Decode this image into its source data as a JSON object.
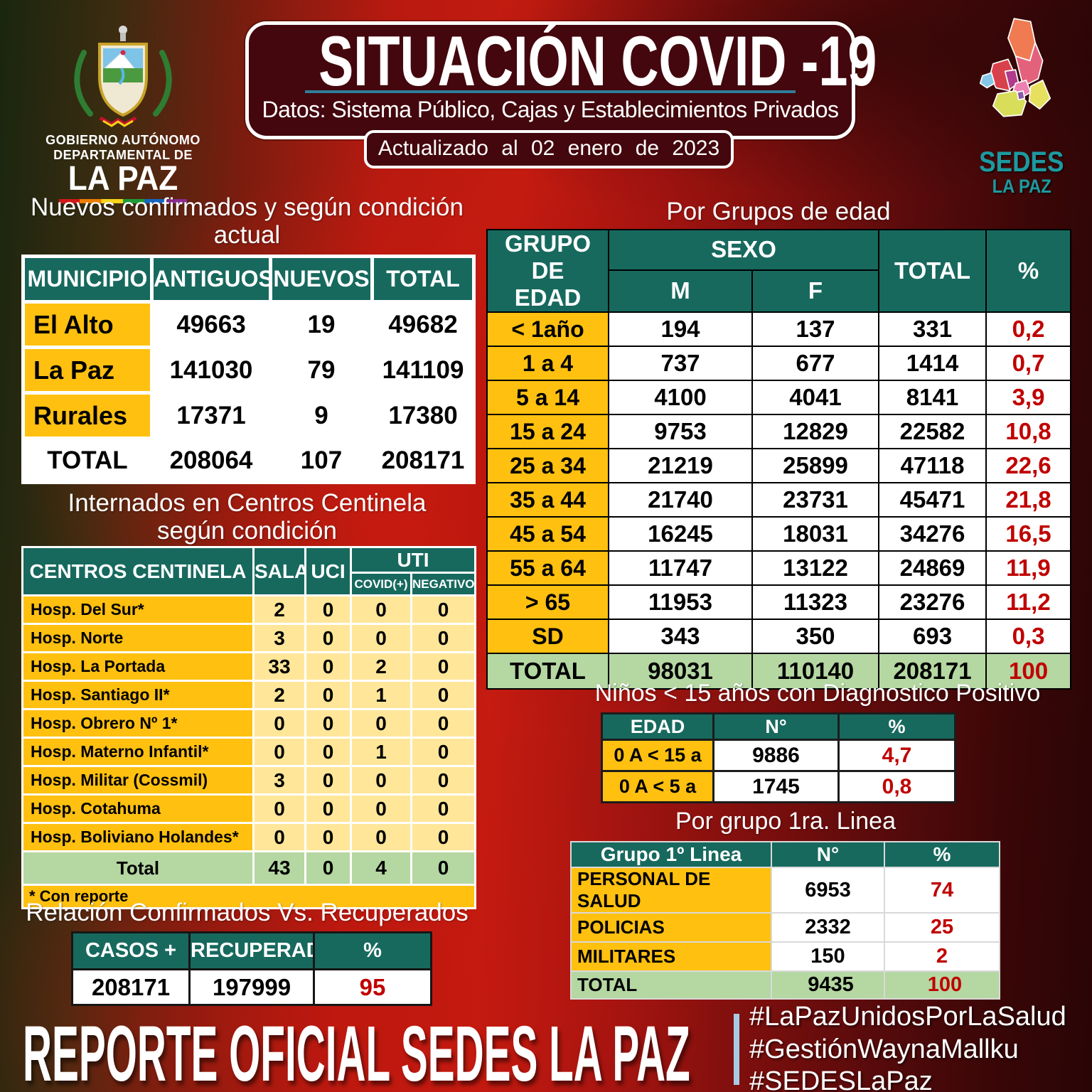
{
  "header": {
    "title": "SITUACIÓN COVID -19",
    "subtitle": "Datos: Sistema Público, Cajas y Establecimientos Privados",
    "updated": "Actualizado al 02 enero de 2023"
  },
  "logo_gobierno": {
    "line1": "GOBIERNO AUTÓNOMO",
    "line2": "DEPARTAMENTAL DE",
    "line3": "LA PAZ"
  },
  "logo_sedes": {
    "line1": "SEDES",
    "line2": "LA PAZ"
  },
  "municipios": {
    "title_line1": "Nuevos confirmados y según condición",
    "title_line2": "actual",
    "headers": [
      "MUNICIPIO",
      "ANTIGUOS",
      "NUEVOS",
      "TOTAL"
    ],
    "rows": [
      [
        "El Alto",
        "49663",
        "19",
        "49682"
      ],
      [
        "La Paz",
        "141030",
        "79",
        "141109"
      ],
      [
        "Rurales",
        "17371",
        "9",
        "17380"
      ]
    ],
    "total": [
      "TOTAL",
      "208064",
      "107",
      "208171"
    ]
  },
  "edad": {
    "title": "Por Grupos de  edad",
    "header_grupo_l1": "GRUPO DE",
    "header_grupo_l2": "EDAD",
    "header_sexo": "SEXO",
    "header_m": "M",
    "header_f": "F",
    "header_total": "TOTAL",
    "header_pct": "%",
    "rows": [
      [
        "< 1año",
        "194",
        "137",
        "331",
        "0,2"
      ],
      [
        "1 a 4",
        "737",
        "677",
        "1414",
        "0,7"
      ],
      [
        "5 a 14",
        "4100",
        "4041",
        "8141",
        "3,9"
      ],
      [
        "15 a 24",
        "9753",
        "12829",
        "22582",
        "10,8"
      ],
      [
        "25 a 34",
        "21219",
        "25899",
        "47118",
        "22,6"
      ],
      [
        "35 a 44",
        "21740",
        "23731",
        "45471",
        "21,8"
      ],
      [
        "45 a 54",
        "16245",
        "18031",
        "34276",
        "16,5"
      ],
      [
        "55 a 64",
        "11747",
        "13122",
        "24869",
        "11,9"
      ],
      [
        "> 65",
        "11953",
        "11323",
        "23276",
        "11,2"
      ],
      [
        "SD",
        "343",
        "350",
        "693",
        "0,3"
      ]
    ],
    "total": [
      "TOTAL",
      "98031",
      "110140",
      "208171",
      "100"
    ]
  },
  "centinela": {
    "title_line1": "Internados en Centros Centinela",
    "title_line2": "según condición",
    "header_centros": "CENTROS CENTINELA",
    "header_sala": "SALA",
    "header_uci": "UCI",
    "header_uti": "UTI",
    "header_covid": "COVID(+)",
    "header_negativo": "NEGATIVO",
    "rows": [
      [
        "Hosp. Del Sur*",
        "2",
        "0",
        "0",
        "0"
      ],
      [
        "Hosp. Norte",
        "3",
        "0",
        "0",
        "0"
      ],
      [
        "Hosp. La Portada",
        "33",
        "0",
        "2",
        "0"
      ],
      [
        "Hosp. Santiago II*",
        "2",
        "0",
        "1",
        "0"
      ],
      [
        "Hosp. Obrero Nº 1*",
        "0",
        "0",
        "0",
        "0"
      ],
      [
        "Hosp. Materno Infantil*",
        "0",
        "0",
        "1",
        "0"
      ],
      [
        "Hosp. Militar (Cossmil)",
        "3",
        "0",
        "0",
        "0"
      ],
      [
        "Hosp. Cotahuma",
        "0",
        "0",
        "0",
        "0"
      ],
      [
        "Hosp. Boliviano Holandes*",
        "0",
        "0",
        "0",
        "0"
      ]
    ],
    "total": [
      "Total",
      "43",
      "0",
      "4",
      "0"
    ],
    "footnote": "* Con reporte"
  },
  "relacion": {
    "title": "Relación Confirmados Vs. Recuperados",
    "headers": [
      "CASOS +",
      "RECUPERADOS",
      "%"
    ],
    "rows": [
      [
        "208171",
        "197999",
        "95"
      ]
    ]
  },
  "ninos": {
    "title": "Niños < 15 años con Diagnostico Positivo",
    "headers": [
      "EDAD",
      "N°",
      "%"
    ],
    "rows": [
      [
        "0 A < 15 a",
        "9886",
        "4,7"
      ],
      [
        "0 A < 5 a",
        "1745",
        "0,8"
      ]
    ]
  },
  "grupo1": {
    "title": "Por grupo 1ra. Linea",
    "headers": [
      "Grupo 1º Linea",
      "N°",
      "%"
    ],
    "rows": [
      [
        "PERSONAL DE SALUD",
        "6953",
        "74"
      ],
      [
        "POLICIAS",
        "2332",
        "25"
      ],
      [
        "MILITARES",
        "150",
        "2"
      ]
    ],
    "total": [
      "TOTAL",
      "9435",
      "100"
    ]
  },
  "footer": {
    "title": "REPORTE OFICIAL SEDES LA PAZ",
    "hashtag1": "#LaPazUnidosPorLaSalud",
    "hashtag2": "#GestiónWaynaMallku",
    "hashtag3": "#SEDESLaPaz"
  },
  "colors": {
    "header_teal": "#17695e",
    "cell_orange": "#ffc010",
    "cell_cream": "#ffe699",
    "total_green": "#b5d7a2",
    "value_red": "#c00000",
    "underline_blue": "#2f7d9a",
    "hashtag_bar_blue": "#a8cbe4",
    "box_maroon": "#43070d"
  }
}
